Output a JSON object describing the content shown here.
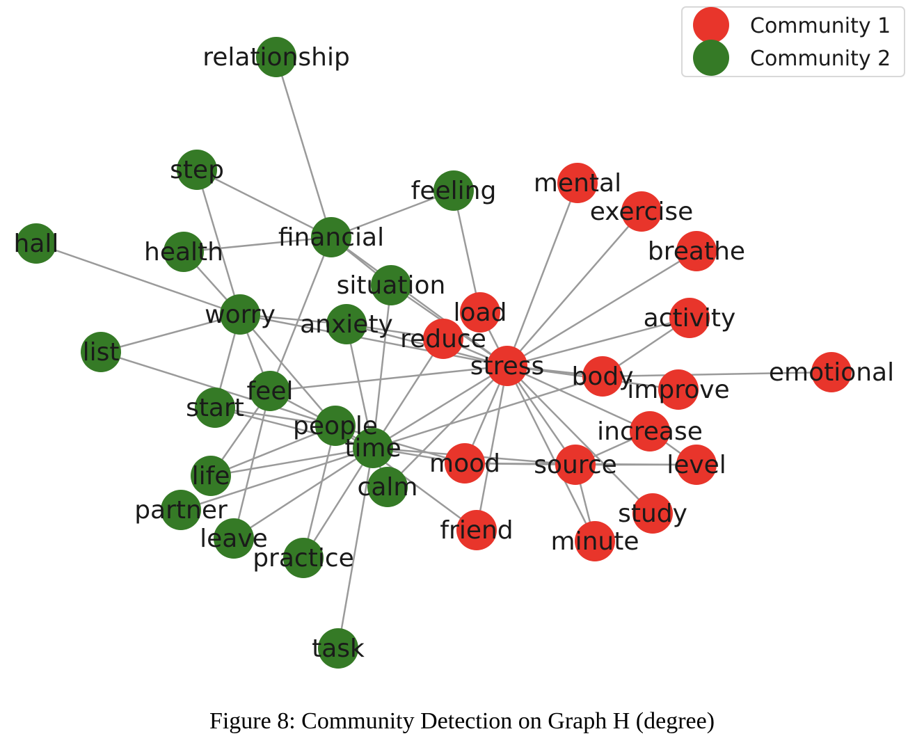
{
  "caption": "Figure 8: Community Detection on Graph H (degree)",
  "legend": [
    {
      "label": "Community 1",
      "color": "#e8352b"
    },
    {
      "label": "Community 2",
      "color": "#357a26"
    }
  ],
  "colors": {
    "1": "#e8352b",
    "2": "#357a26",
    "edge": "#9a9a9a"
  },
  "nodes": [
    {
      "id": "relationship",
      "c": 2
    },
    {
      "id": "step",
      "c": 2
    },
    {
      "id": "feeling",
      "c": 2
    },
    {
      "id": "hall",
      "c": 2
    },
    {
      "id": "health",
      "c": 2
    },
    {
      "id": "financial",
      "c": 2
    },
    {
      "id": "situation",
      "c": 2
    },
    {
      "id": "worry",
      "c": 2
    },
    {
      "id": "anxiety",
      "c": 2
    },
    {
      "id": "list",
      "c": 2
    },
    {
      "id": "feel",
      "c": 2
    },
    {
      "id": "start",
      "c": 2
    },
    {
      "id": "people",
      "c": 2
    },
    {
      "id": "time",
      "c": 2
    },
    {
      "id": "calm",
      "c": 2
    },
    {
      "id": "life",
      "c": 2
    },
    {
      "id": "partner",
      "c": 2
    },
    {
      "id": "leave",
      "c": 2
    },
    {
      "id": "practice",
      "c": 2
    },
    {
      "id": "task",
      "c": 2
    },
    {
      "id": "mental",
      "c": 1
    },
    {
      "id": "exercise",
      "c": 1
    },
    {
      "id": "breathe",
      "c": 1
    },
    {
      "id": "load",
      "c": 1
    },
    {
      "id": "reduce",
      "c": 1
    },
    {
      "id": "activity",
      "c": 1
    },
    {
      "id": "stress",
      "c": 1
    },
    {
      "id": "body",
      "c": 1
    },
    {
      "id": "emotional",
      "c": 1
    },
    {
      "id": "improve",
      "c": 1
    },
    {
      "id": "increase",
      "c": 1
    },
    {
      "id": "mood",
      "c": 1
    },
    {
      "id": "source",
      "c": 1
    },
    {
      "id": "level",
      "c": 1
    },
    {
      "id": "study",
      "c": 1
    },
    {
      "id": "friend",
      "c": 1
    },
    {
      "id": "minute",
      "c": 1
    }
  ],
  "edges": [
    [
      "relationship",
      "financial"
    ],
    [
      "step",
      "financial"
    ],
    [
      "step",
      "worry"
    ],
    [
      "feeling",
      "financial"
    ],
    [
      "feeling",
      "load"
    ],
    [
      "hall",
      "worry"
    ],
    [
      "health",
      "financial"
    ],
    [
      "health",
      "worry"
    ],
    [
      "financial",
      "situation"
    ],
    [
      "financial",
      "stress"
    ],
    [
      "financial",
      "feel"
    ],
    [
      "situation",
      "stress"
    ],
    [
      "situation",
      "time"
    ],
    [
      "worry",
      "anxiety"
    ],
    [
      "worry",
      "stress"
    ],
    [
      "worry",
      "list"
    ],
    [
      "worry",
      "people"
    ],
    [
      "worry",
      "start"
    ],
    [
      "worry",
      "feel"
    ],
    [
      "anxiety",
      "stress"
    ],
    [
      "anxiety",
      "reduce"
    ],
    [
      "anxiety",
      "time"
    ],
    [
      "list",
      "people"
    ],
    [
      "feel",
      "stress"
    ],
    [
      "feel",
      "people"
    ],
    [
      "feel",
      "life"
    ],
    [
      "feel",
      "leave"
    ],
    [
      "start",
      "people"
    ],
    [
      "start",
      "time"
    ],
    [
      "people",
      "time"
    ],
    [
      "people",
      "mood"
    ],
    [
      "people",
      "friend"
    ],
    [
      "time",
      "stress"
    ],
    [
      "time",
      "reduce"
    ],
    [
      "time",
      "body"
    ],
    [
      "time",
      "life"
    ],
    [
      "time",
      "partner"
    ],
    [
      "time",
      "leave"
    ],
    [
      "time",
      "practice"
    ],
    [
      "time",
      "task"
    ],
    [
      "time",
      "calm"
    ],
    [
      "time",
      "source"
    ],
    [
      "life",
      "people"
    ],
    [
      "people",
      "practice"
    ],
    [
      "mood",
      "source"
    ],
    [
      "mood",
      "level"
    ],
    [
      "mood",
      "stress"
    ],
    [
      "stress",
      "mental"
    ],
    [
      "stress",
      "exercise"
    ],
    [
      "stress",
      "breathe"
    ],
    [
      "stress",
      "load"
    ],
    [
      "stress",
      "reduce"
    ],
    [
      "stress",
      "activity"
    ],
    [
      "stress",
      "body"
    ],
    [
      "stress",
      "improve"
    ],
    [
      "stress",
      "increase"
    ],
    [
      "stress",
      "source"
    ],
    [
      "stress",
      "study"
    ],
    [
      "stress",
      "friend"
    ],
    [
      "stress",
      "minute"
    ],
    [
      "stress",
      "calm"
    ],
    [
      "body",
      "emotional"
    ],
    [
      "body",
      "activity"
    ],
    [
      "source",
      "increase"
    ],
    [
      "source",
      "minute"
    ],
    [
      "source",
      "level"
    ],
    [
      "increase",
      "level"
    ],
    [
      "time",
      "mood"
    ]
  ]
}
